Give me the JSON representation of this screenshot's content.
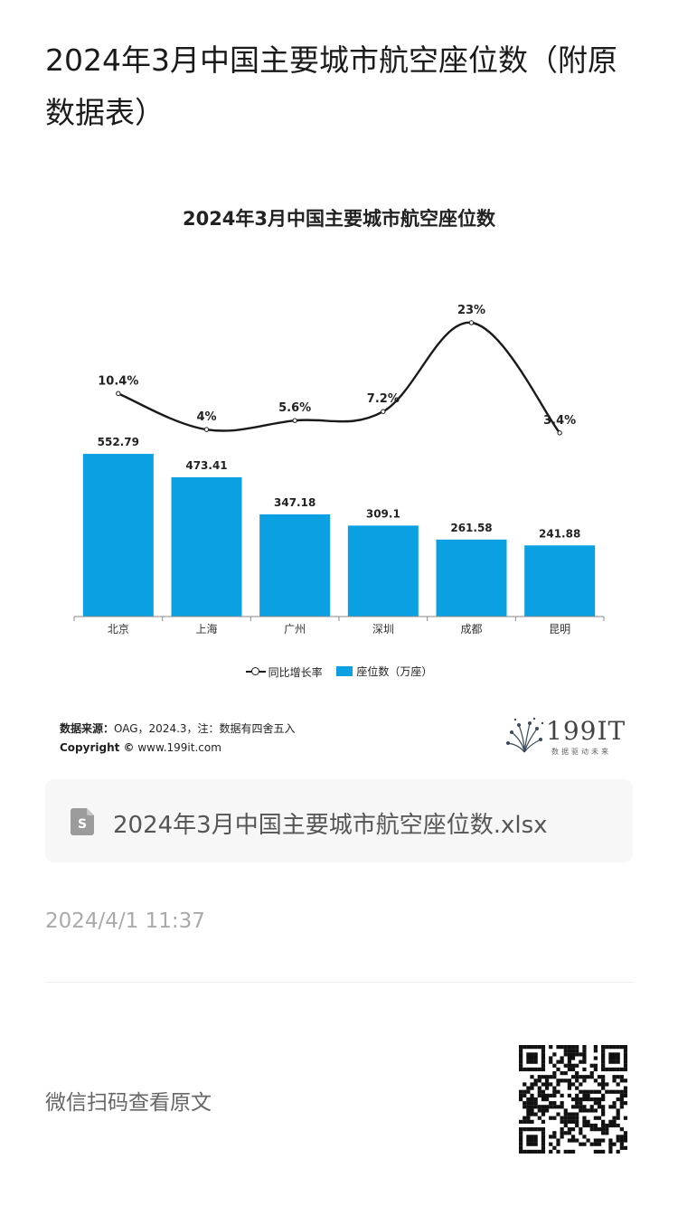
{
  "article": {
    "title": "2024年3月中国主要城市航空座位数（附原数据表）",
    "date": "2024/4/1 11:37",
    "scan_text": "微信扫码查看原文"
  },
  "chart_card": {
    "source_label": "数据来源：",
    "source_text": "OAG，2024.3，注：数据有四舍五入",
    "copyright_label": "Copyright ©",
    "copyright_text": " www.199it.com",
    "brand_name": "199IT",
    "brand_tagline": "数据驱动未来"
  },
  "attachment": {
    "file_name": "2024年3月中国主要城市航空座位数.xlsx",
    "icon": "spreadsheet-file-icon"
  },
  "colors": {
    "bar": "#0aa0e2",
    "line": "#1a1a1a",
    "brand": "#3a4a5a"
  },
  "chart_data": {
    "type": "bar",
    "title": "2024年3月中国主要城市航空座位数",
    "categories": [
      "北京",
      "上海",
      "广州",
      "深圳",
      "成都",
      "昆明"
    ],
    "series": [
      {
        "name": "座位数（万座）",
        "type": "bar",
        "values": [
          552.79,
          473.41,
          347.18,
          309.1,
          261.58,
          241.88
        ],
        "labels": [
          "552.79",
          "473.41",
          "347.18",
          "309.1",
          "261.58",
          "241.88"
        ]
      },
      {
        "name": "同比增长率",
        "type": "line",
        "values": [
          10.4,
          4,
          5.6,
          7.2,
          23,
          3.4
        ],
        "labels": [
          "10.4%",
          "4%",
          "5.6%",
          "7.2%",
          "23%",
          "3.4%"
        ]
      }
    ],
    "legend_position": "bottom",
    "grid": false
  }
}
